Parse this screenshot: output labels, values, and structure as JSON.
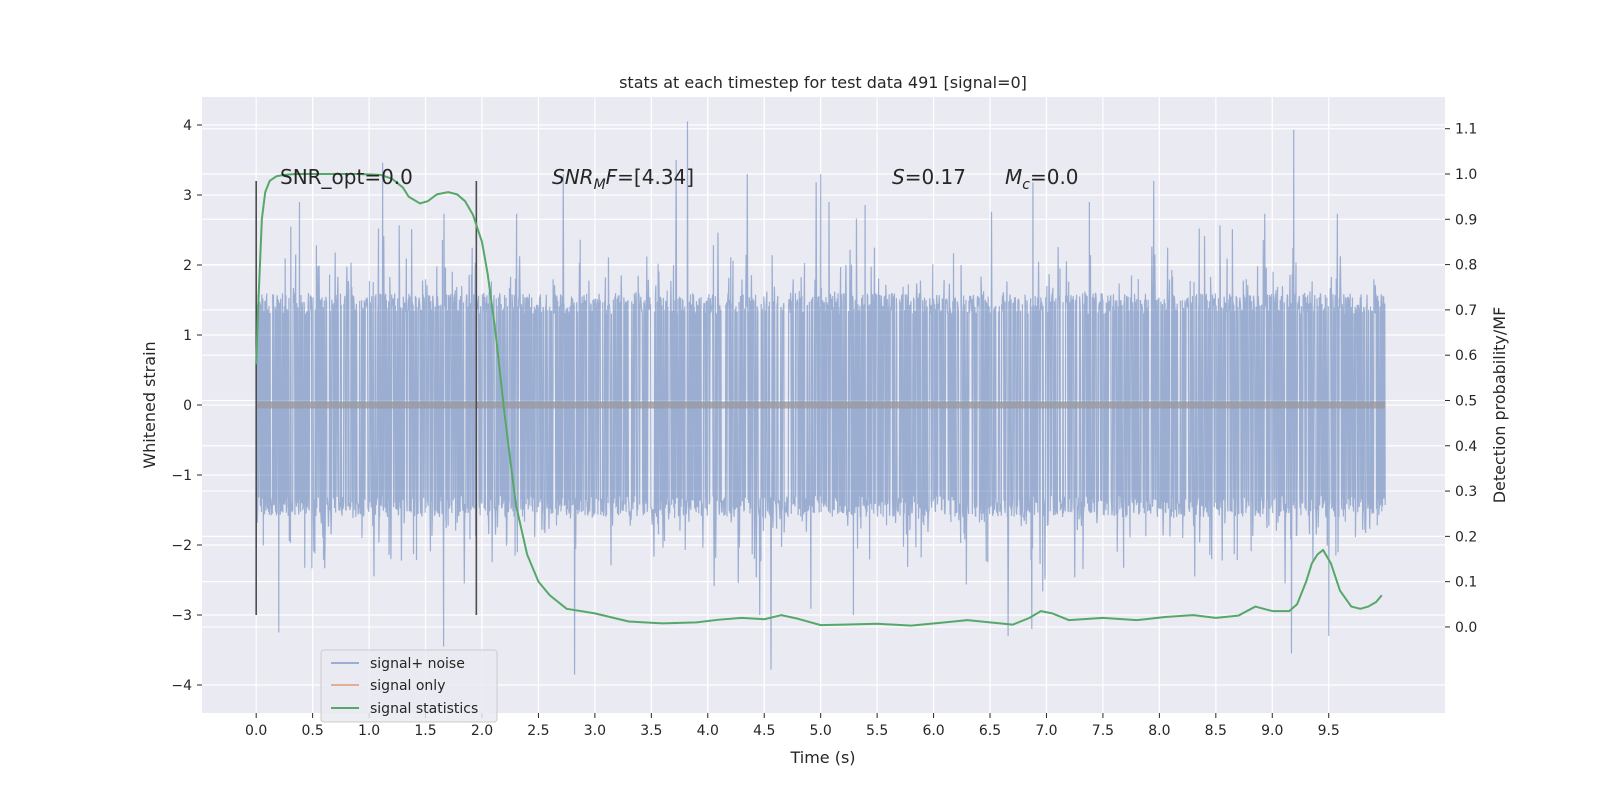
{
  "chart_data": {
    "type": "line",
    "title": "stats at each timestep for test data 491 [signal=0]",
    "xlabel": "Time (s)",
    "ylabel": "Whitened strain",
    "y2label": "Detection probability/MF",
    "xlim": [
      -0.48,
      10.53
    ],
    "ylim": [
      -4.4,
      4.4
    ],
    "y2lim": [
      -0.19,
      1.17
    ],
    "x_ticks": [
      "0.0",
      "0.5",
      "1.0",
      "1.5",
      "2.0",
      "2.5",
      "3.0",
      "3.5",
      "4.0",
      "4.5",
      "5.0",
      "5.5",
      "6.0",
      "6.5",
      "7.0",
      "7.5",
      "8.0",
      "8.5",
      "9.0",
      "9.5"
    ],
    "y_ticks": [
      "4",
      "3",
      "2",
      "1",
      "0",
      "−1",
      "−2",
      "−3",
      "−4"
    ],
    "y2_ticks": [
      "1.1",
      "1.0",
      "0.9",
      "0.8",
      "0.7",
      "0.6",
      "0.5",
      "0.4",
      "0.3",
      "0.2",
      "0.1",
      "0.0"
    ],
    "grid": true,
    "legend_position": "lower-left",
    "colors": {
      "background": "#eaeaf2",
      "signal_noise": "#4c72b0",
      "signal_only": "#dd8452",
      "signal_statistics": "#55a868",
      "marker_lines": "#4d4d4d"
    },
    "series": [
      {
        "name": "signal+ noise",
        "axis": "left",
        "description_values": "dense whitened strain samples from 0.0 s to 10.0 s, inner band about ±1.35, peaks between about 2.3 and 4.1 and troughs down to about −3.8",
        "notable_peaks": [
          [
            3.82,
            4.05
          ],
          [
            9.19,
            3.93
          ],
          [
            1.12,
            3.46
          ],
          [
            7.95,
            3.2
          ],
          [
            6.88,
            3.18
          ],
          [
            4.35,
            3.3
          ],
          [
            3.72,
            3.5
          ],
          [
            5.0,
            3.3
          ],
          [
            4.96,
            3.18
          ],
          [
            2.72,
            3.3
          ]
        ],
        "notable_troughs": [
          [
            2.82,
            -3.85
          ],
          [
            4.56,
            -3.78
          ],
          [
            9.17,
            -3.55
          ],
          [
            1.66,
            -3.45
          ],
          [
            0.2,
            -3.25
          ],
          [
            6.66,
            -3.3
          ],
          [
            6.87,
            -3.2
          ],
          [
            9.5,
            -3.3
          ],
          [
            5.29,
            -3.0
          ]
        ]
      },
      {
        "name": "signal only",
        "axis": "left",
        "x": [
          0.0,
          10.0
        ],
        "y": [
          0.0,
          0.0
        ]
      },
      {
        "name": "signal statistics",
        "axis": "right",
        "x": [
          0.0,
          0.02,
          0.05,
          0.08,
          0.12,
          0.18,
          0.25,
          0.35,
          0.5,
          0.7,
          0.9,
          1.1,
          1.2,
          1.3,
          1.35,
          1.45,
          1.52,
          1.6,
          1.7,
          1.78,
          1.85,
          1.92,
          2.0,
          2.05,
          2.12,
          2.2,
          2.3,
          2.4,
          2.5,
          2.6,
          2.75,
          3.0,
          3.3,
          3.6,
          3.9,
          4.1,
          4.3,
          4.5,
          4.65,
          4.8,
          5.0,
          5.2,
          5.5,
          5.8,
          6.1,
          6.3,
          6.5,
          6.7,
          6.85,
          6.95,
          7.05,
          7.2,
          7.5,
          7.8,
          8.05,
          8.3,
          8.5,
          8.7,
          8.85,
          9.0,
          9.15,
          9.22,
          9.3,
          9.35,
          9.4,
          9.45,
          9.52,
          9.6,
          9.7,
          9.78,
          9.85,
          9.92,
          9.97
        ],
        "y": [
          0.58,
          0.72,
          0.9,
          0.96,
          0.985,
          0.995,
          0.998,
          1.0,
          1.0,
          1.0,
          1.0,
          0.998,
          0.99,
          0.97,
          0.95,
          0.935,
          0.94,
          0.955,
          0.96,
          0.955,
          0.94,
          0.91,
          0.85,
          0.78,
          0.65,
          0.47,
          0.27,
          0.16,
          0.1,
          0.07,
          0.04,
          0.03,
          0.012,
          0.008,
          0.01,
          0.016,
          0.02,
          0.017,
          0.026,
          0.018,
          0.004,
          0.005,
          0.007,
          0.003,
          0.01,
          0.015,
          0.01,
          0.005,
          0.02,
          0.035,
          0.03,
          0.015,
          0.02,
          0.015,
          0.022,
          0.026,
          0.02,
          0.025,
          0.045,
          0.035,
          0.035,
          0.05,
          0.1,
          0.14,
          0.16,
          0.17,
          0.14,
          0.08,
          0.045,
          0.04,
          0.045,
          0.055,
          0.07
        ]
      }
    ],
    "vertical_markers": [
      {
        "x": 0.0,
        "y_from": -3.0,
        "y_to": 3.2
      },
      {
        "x": 1.95,
        "y_from": -3.0,
        "y_to": 3.2
      }
    ],
    "annotations": {
      "snr_opt": "SNR_opt=0.0",
      "snr_mf_name": "SNR",
      "snr_mf_sub": "M",
      "snr_mf_tail": "F",
      "snr_mf_value": "=[4.34]",
      "s_name": "S",
      "s_value": "=0.17",
      "mc_name": "M",
      "mc_sub": "c",
      "mc_value": "=0.0"
    },
    "legend": [
      "signal+ noise",
      "signal only",
      "signal statistics"
    ]
  }
}
